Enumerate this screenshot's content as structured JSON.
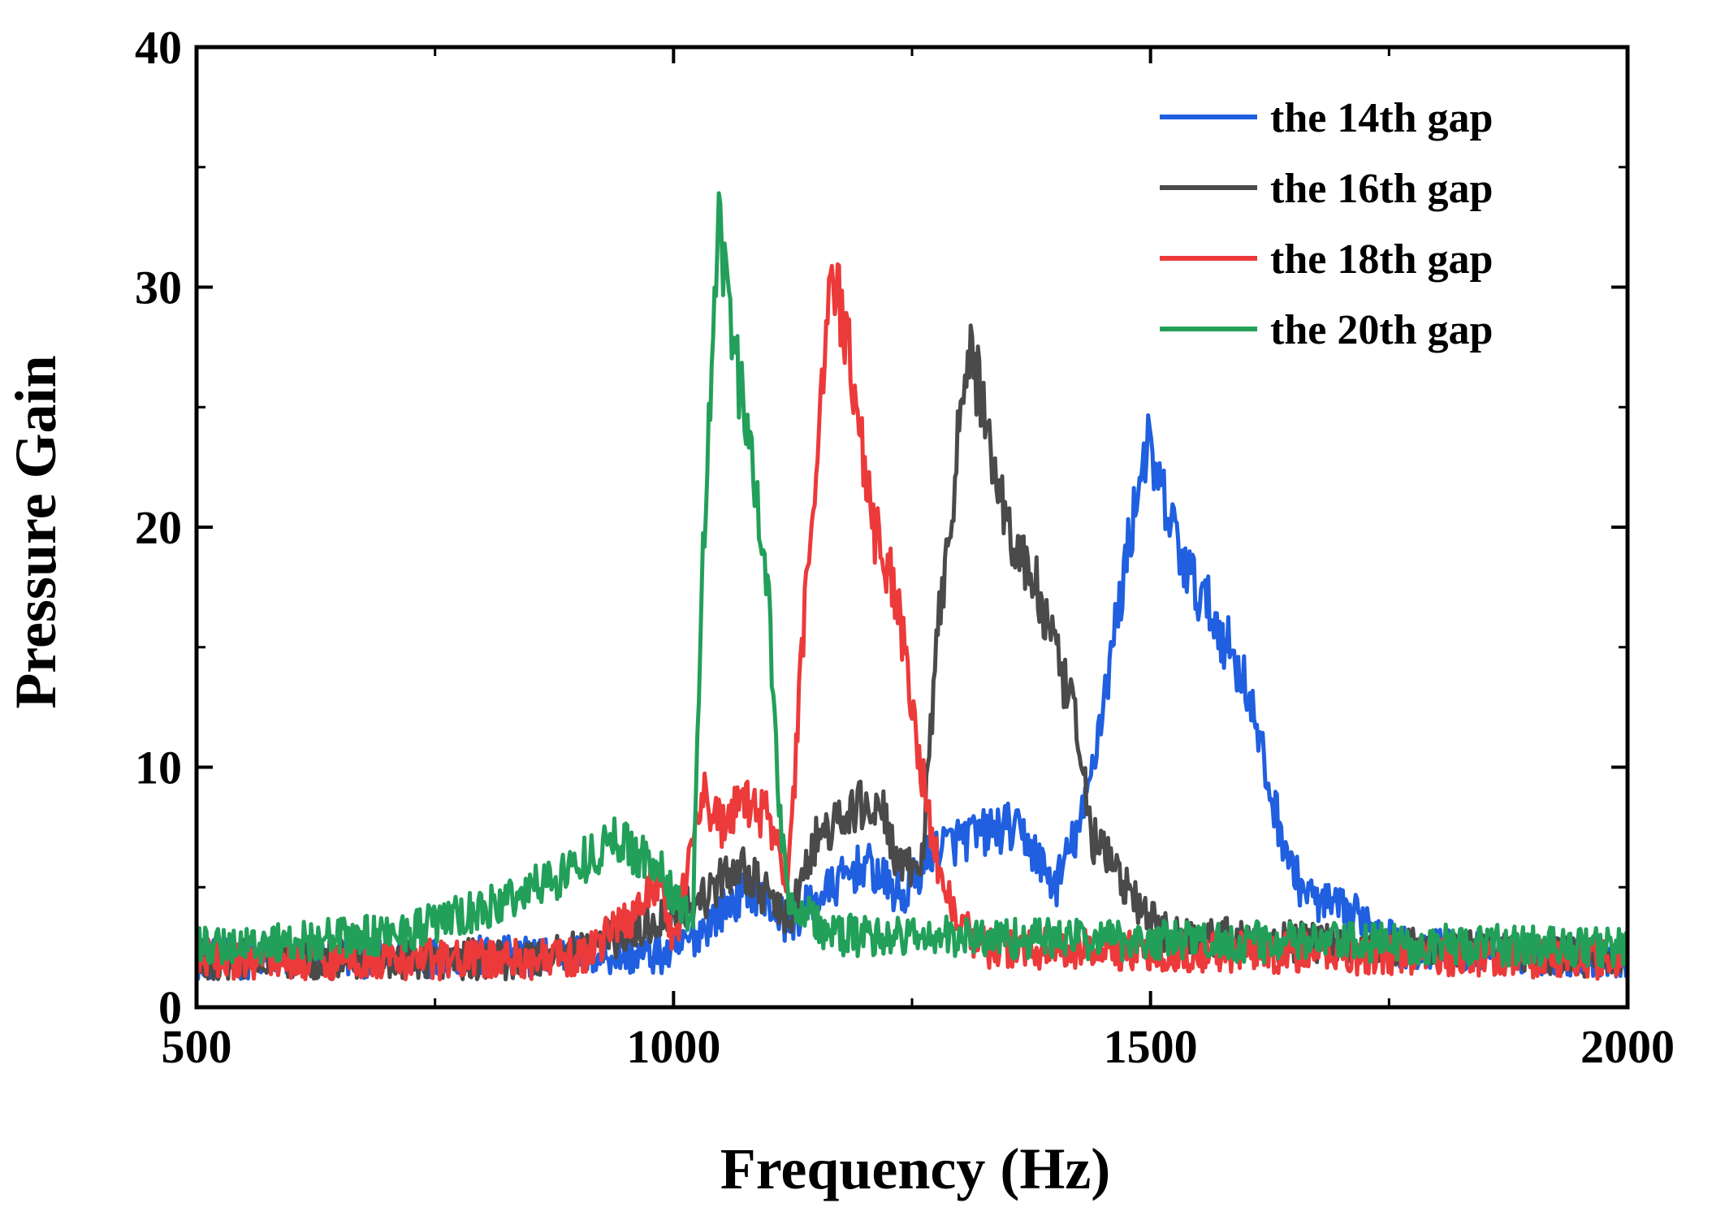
{
  "chart_data": {
    "type": "line",
    "title": "",
    "xlabel": "Frequency (Hz)",
    "ylabel": "Pressure Gain",
    "xlim": [
      500,
      2000
    ],
    "ylim": [
      0,
      40
    ],
    "x_ticks": [
      500,
      1000,
      1500,
      2000
    ],
    "y_ticks": [
      0,
      10,
      20,
      30,
      40
    ],
    "grid": false,
    "legend_position": "top-right",
    "series": [
      {
        "name": "the 14th gap",
        "color": "#1f5fe0",
        "noise": 1.3,
        "points": [
          [
            500,
            2.0
          ],
          [
            1000,
            2.2
          ],
          [
            1050,
            4.0
          ],
          [
            1080,
            5.0
          ],
          [
            1120,
            3.5
          ],
          [
            1150,
            4.5
          ],
          [
            1200,
            6.0
          ],
          [
            1240,
            4.5
          ],
          [
            1270,
            6.5
          ],
          [
            1300,
            7.0
          ],
          [
            1350,
            7.5
          ],
          [
            1370,
            7.0
          ],
          [
            1400,
            5.0
          ],
          [
            1430,
            8.0
          ],
          [
            1460,
            15.0
          ],
          [
            1480,
            20.0
          ],
          [
            1495,
            23.5
          ],
          [
            1510,
            21.5
          ],
          [
            1540,
            18.0
          ],
          [
            1570,
            16.0
          ],
          [
            1600,
            13.5
          ],
          [
            1625,
            9.0
          ],
          [
            1650,
            5.5
          ],
          [
            1670,
            4.5
          ],
          [
            1700,
            4.0
          ],
          [
            1740,
            3.5
          ],
          [
            1760,
            2.5
          ],
          [
            2000,
            2.0
          ]
        ]
      },
      {
        "name": "the 16th gap",
        "color": "#4a4a4a",
        "noise": 1.3,
        "points": [
          [
            500,
            2.0
          ],
          [
            850,
            2.0
          ],
          [
            950,
            3.0
          ],
          [
            1000,
            4.0
          ],
          [
            1030,
            4.5
          ],
          [
            1070,
            6.0
          ],
          [
            1100,
            4.5
          ],
          [
            1120,
            3.5
          ],
          [
            1150,
            7.0
          ],
          [
            1200,
            8.5
          ],
          [
            1220,
            8.0
          ],
          [
            1240,
            5.5
          ],
          [
            1260,
            6.0
          ],
          [
            1280,
            17.0
          ],
          [
            1300,
            24.0
          ],
          [
            1310,
            27.5
          ],
          [
            1330,
            24.0
          ],
          [
            1350,
            20.0
          ],
          [
            1380,
            17.5
          ],
          [
            1420,
            12.0
          ],
          [
            1440,
            7.0
          ],
          [
            1460,
            6.0
          ],
          [
            1490,
            4.0
          ],
          [
            1520,
            3.0
          ],
          [
            2000,
            2.0
          ]
        ]
      },
      {
        "name": "the 18th gap",
        "color": "#ec3a3a",
        "noise": 1.3,
        "points": [
          [
            500,
            2.0
          ],
          [
            900,
            2.0
          ],
          [
            960,
            4.0
          ],
          [
            985,
            5.5
          ],
          [
            1000,
            2.5
          ],
          [
            1030,
            9.0
          ],
          [
            1050,
            7.5
          ],
          [
            1070,
            8.5
          ],
          [
            1100,
            8.0
          ],
          [
            1120,
            5.0
          ],
          [
            1140,
            18.0
          ],
          [
            1165,
            31.0
          ],
          [
            1185,
            27.0
          ],
          [
            1210,
            20.0
          ],
          [
            1235,
            17.0
          ],
          [
            1260,
            10.0
          ],
          [
            1280,
            5.0
          ],
          [
            1300,
            4.0
          ],
          [
            1320,
            2.5
          ],
          [
            2000,
            2.0
          ]
        ]
      },
      {
        "name": "the 20th gap",
        "color": "#22a05a",
        "noise": 1.3,
        "points": [
          [
            500,
            2.5
          ],
          [
            700,
            3.0
          ],
          [
            800,
            4.0
          ],
          [
            880,
            5.5
          ],
          [
            940,
            7.0
          ],
          [
            980,
            6.0
          ],
          [
            1010,
            4.0
          ],
          [
            1020,
            3.5
          ],
          [
            1030,
            18.0
          ],
          [
            1048,
            32.5
          ],
          [
            1065,
            27.0
          ],
          [
            1085,
            22.0
          ],
          [
            1100,
            17.0
          ],
          [
            1110,
            9.0
          ],
          [
            1120,
            4.5
          ],
          [
            1140,
            4.0
          ],
          [
            1160,
            3.0
          ],
          [
            2000,
            2.5
          ]
        ]
      }
    ]
  }
}
